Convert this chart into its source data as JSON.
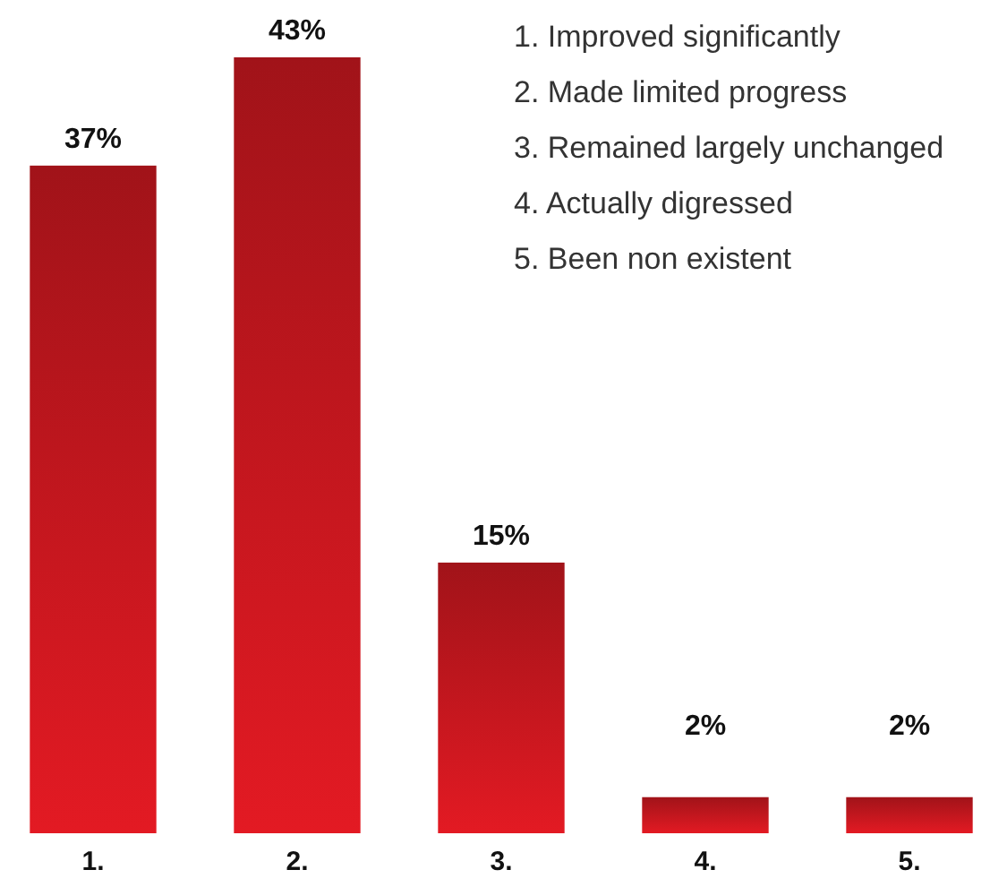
{
  "chart_data": {
    "type": "bar",
    "categories": [
      "1.",
      "2.",
      "3.",
      "4.",
      "5."
    ],
    "values": [
      37,
      43,
      15,
      2,
      2
    ],
    "value_labels": [
      "37%",
      "43%",
      "15%",
      "2%",
      "2%"
    ],
    "color": "#c8171f",
    "annotations": [
      "1. Improved significantly",
      "2. Made limited progress",
      "3. Remained largely unchanged",
      "4. Actually digressed",
      "5. Been non existent"
    ]
  }
}
